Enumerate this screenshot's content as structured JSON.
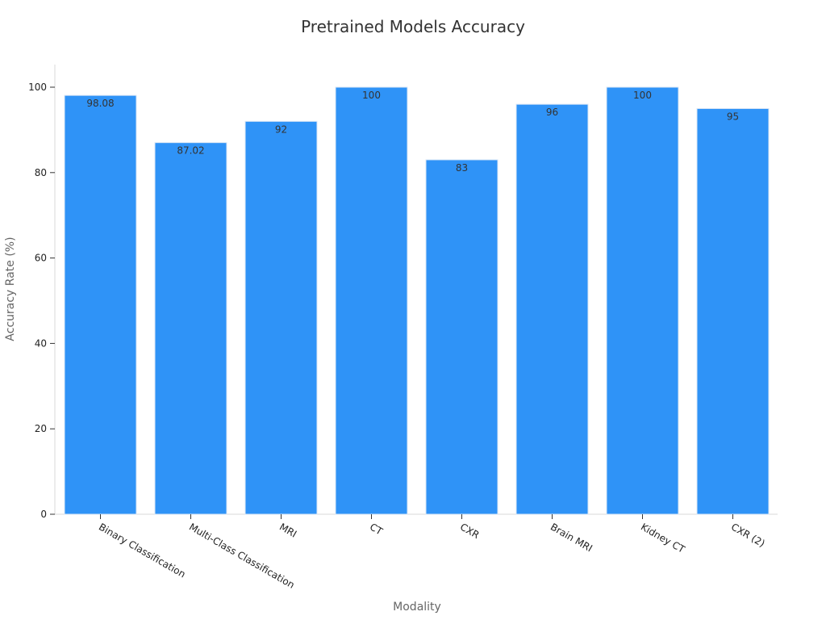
{
  "chart_data": {
    "type": "bar",
    "title": "Pretrained Models Accuracy",
    "xlabel": "Modality",
    "ylabel": "Accuracy Rate (%)",
    "categories": [
      "Binary Classification",
      "Multi-Class Classification",
      "MRI",
      "CT",
      "CXR",
      "Brain MRI",
      "Kidney CT",
      "CXR (2)"
    ],
    "values": [
      98.08,
      87.02,
      92,
      100,
      83,
      96,
      100,
      95
    ],
    "value_labels": [
      "98.08",
      "87.02",
      "92",
      "100",
      "83",
      "96",
      "100",
      "95"
    ],
    "ylim": [
      0,
      105
    ],
    "yticks": [
      0,
      20,
      40,
      60,
      80,
      100
    ],
    "ytick_labels": [
      "0",
      "20",
      "40",
      "60",
      "80",
      "100"
    ],
    "grid": false,
    "legend": "none",
    "bar_color": "#2f93f7",
    "bar_edge_color": "#dbe7f5"
  }
}
